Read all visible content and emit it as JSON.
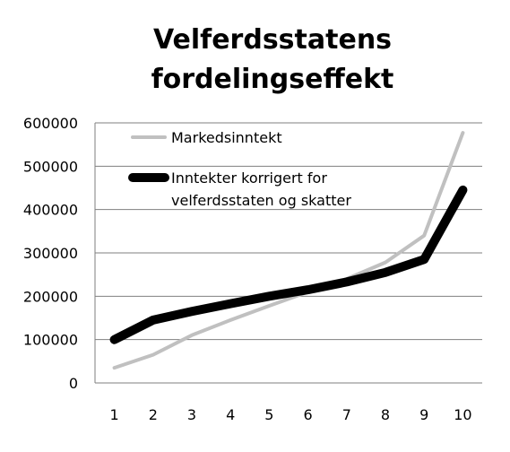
{
  "chart_data": {
    "type": "line",
    "title_lines": [
      "Velferdsstatens",
      "fordelingseffekt"
    ],
    "xlabel": "",
    "ylabel": "",
    "x": [
      1,
      2,
      3,
      4,
      5,
      6,
      7,
      8,
      9,
      10
    ],
    "x_tick_labels": [
      "1",
      "2",
      "3",
      "4",
      "5",
      "6",
      "7",
      "8",
      "9",
      "10"
    ],
    "ylim": [
      0,
      600000
    ],
    "y_tick_labels": [
      "0",
      "100000",
      "200000",
      "300000",
      "400000",
      "500000",
      "600000"
    ],
    "y_ticks": [
      0,
      100000,
      200000,
      300000,
      400000,
      500000,
      600000
    ],
    "grid": "horizontal",
    "legend_placement": "top-left",
    "series": [
      {
        "name": "Markedsinntekt",
        "legend_lines": [
          "Markedsinntekt"
        ],
        "color": "#c0c0c0",
        "values": [
          35000,
          65000,
          110000,
          145000,
          178000,
          210000,
          240000,
          278000,
          340000,
          577000
        ]
      },
      {
        "name": "Inntekter korrigert for velferdsstaten og skatter",
        "legend_lines": [
          "Inntekter korrigert for",
          "velferdsstaten og skatter"
        ],
        "color": "#000000",
        "values": [
          100000,
          145000,
          165000,
          183000,
          200000,
          215000,
          233000,
          255000,
          285000,
          445000
        ]
      }
    ]
  }
}
